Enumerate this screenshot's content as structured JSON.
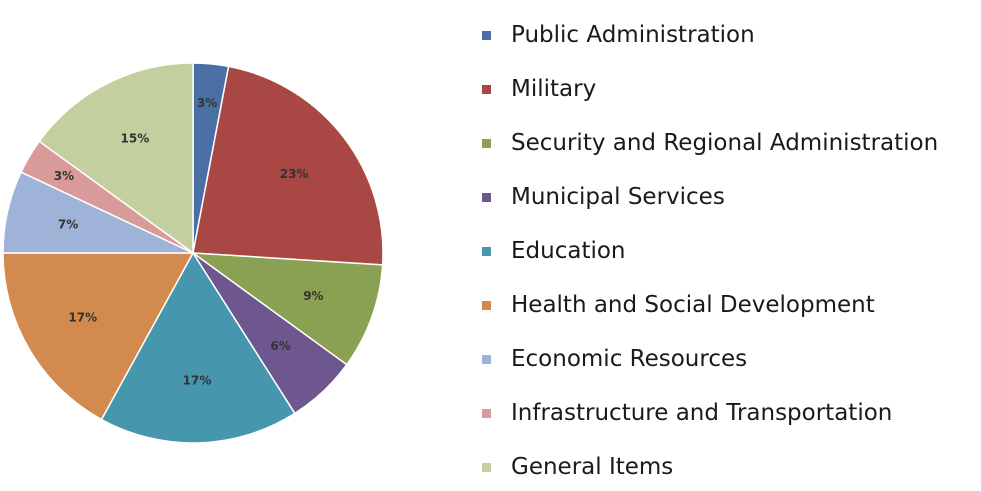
{
  "chart_data": {
    "type": "pie",
    "title": "",
    "start_angle_deg": 0,
    "direction": "clockwise",
    "legend_position": "right",
    "slices": [
      {
        "name": "Public Administration",
        "value": 3,
        "label": "3%",
        "color": "#4a6fa5"
      },
      {
        "name": "Military",
        "value": 23,
        "label": "23%",
        "color": "#a84743"
      },
      {
        "name": "Security and Regional Administration",
        "value": 9,
        "label": "9%",
        "color": "#8aa052"
      },
      {
        "name": "Municipal Services",
        "value": 6,
        "label": "6%",
        "color": "#6e578f"
      },
      {
        "name": "Education",
        "value": 17,
        "label": "17%",
        "color": "#4697ad"
      },
      {
        "name": "Health and Social Development",
        "value": 17,
        "label": "17%",
        "color": "#d38a4e"
      },
      {
        "name": "Economic Resources",
        "value": 7,
        "label": "7%",
        "color": "#9eb3d7"
      },
      {
        "name": "Infrastructure and Transportation",
        "value": 3,
        "label": "3%",
        "color": "#d99b9a"
      },
      {
        "name": "General Items",
        "value": 15,
        "label": "15%",
        "color": "#c3cf9e"
      }
    ]
  }
}
